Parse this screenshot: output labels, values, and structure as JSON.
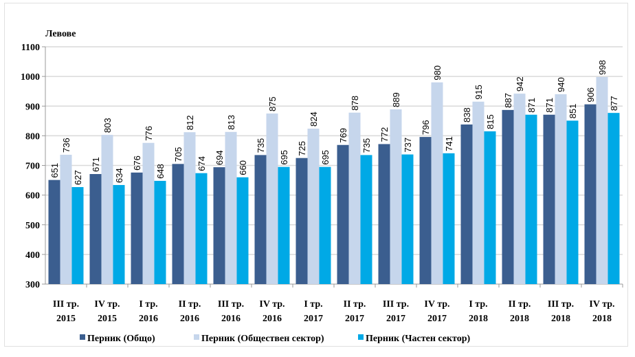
{
  "chart_data": {
    "type": "bar",
    "ylabel": "Левове",
    "ylim": [
      300,
      1100
    ],
    "yticks": [
      300,
      400,
      500,
      600,
      700,
      800,
      900,
      1000,
      1100
    ],
    "grid": true,
    "legend_position": "bottom",
    "categories": [
      [
        "III тр.",
        "2015"
      ],
      [
        "IV тр.",
        "2015"
      ],
      [
        "I тр.",
        "2016"
      ],
      [
        "II тр.",
        "2016"
      ],
      [
        "III тр.",
        "2016"
      ],
      [
        "IV тр.",
        "2016"
      ],
      [
        "I тр.",
        "2017"
      ],
      [
        "II тр.",
        "2017"
      ],
      [
        "III тр.",
        "2017"
      ],
      [
        "IV тр.",
        "2017"
      ],
      [
        "I тр.",
        "2018"
      ],
      [
        "II тр.",
        "2018"
      ],
      [
        "III тр.",
        "2018"
      ],
      [
        "IV тр.",
        "2018"
      ]
    ],
    "series": [
      {
        "name": "Перник (Общо)",
        "color": "#3b5e8f",
        "values": [
          651,
          671,
          676,
          705,
          694,
          735,
          725,
          769,
          772,
          796,
          838,
          887,
          871,
          906
        ]
      },
      {
        "name": "Перник (Обществен сектор)",
        "color": "#c6d6ec",
        "values": [
          736,
          803,
          776,
          812,
          813,
          875,
          824,
          878,
          889,
          980,
          915,
          942,
          940,
          998
        ]
      },
      {
        "name": "Перник (Частен сектор)",
        "color": "#00a9e6",
        "values": [
          627,
          634,
          648,
          674,
          660,
          695,
          695,
          735,
          737,
          741,
          815,
          871,
          851,
          877
        ]
      }
    ]
  }
}
